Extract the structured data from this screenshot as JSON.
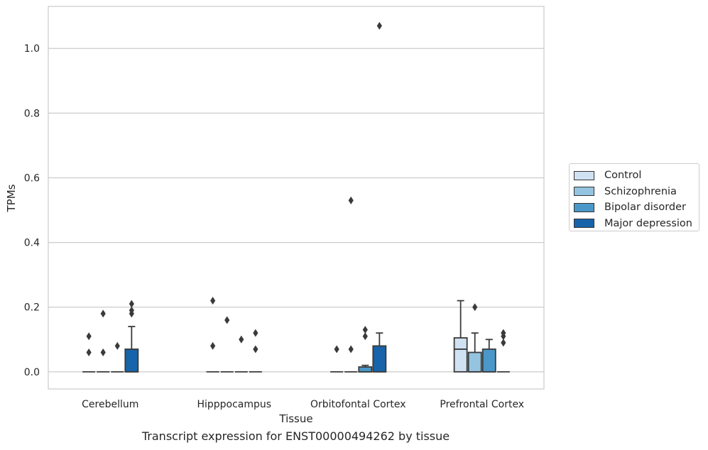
{
  "chart_data": {
    "type": "box",
    "caption": "Transcript expression for ENST00000494262 by tissue",
    "xlabel": "Tissue",
    "ylabel": "TPMs",
    "ylim": [
      -0.053,
      1.13
    ],
    "yticks": [
      0.0,
      0.2,
      0.4,
      0.6,
      0.8,
      1.0
    ],
    "ytick_labels": [
      "0.0",
      "0.2",
      "0.4",
      "0.6",
      "0.8",
      "1.0"
    ],
    "grid": "horizontal",
    "legend_position": "right",
    "categories": [
      "Cerebellum",
      "Hipppocampus",
      "Orbitofontal Cortex",
      "Prefrontal Cortex"
    ],
    "series": [
      {
        "name": "Control",
        "color": "#d0e1f2",
        "boxes": [
          {
            "q1": 0,
            "median": 0,
            "q3": 0,
            "whislo": 0,
            "whishi": 0,
            "fliers": [
              0.06,
              0.11
            ]
          },
          {
            "q1": 0,
            "median": 0,
            "q3": 0,
            "whislo": 0,
            "whishi": 0,
            "fliers": [
              0.08,
              0.22
            ]
          },
          {
            "q1": 0,
            "median": 0,
            "q3": 0,
            "whislo": 0,
            "whishi": 0,
            "fliers": [
              0.07
            ]
          },
          {
            "q1": 0,
            "median": 0.07,
            "q3": 0.105,
            "whislo": 0,
            "whishi": 0.22,
            "fliers": []
          }
        ]
      },
      {
        "name": "Schizophrenia",
        "color": "#94c4df",
        "boxes": [
          {
            "q1": 0,
            "median": 0,
            "q3": 0,
            "whislo": 0,
            "whishi": 0,
            "fliers": [
              0.06,
              0.18
            ]
          },
          {
            "q1": 0,
            "median": 0,
            "q3": 0,
            "whislo": 0,
            "whishi": 0,
            "fliers": [
              0.16
            ]
          },
          {
            "q1": 0,
            "median": 0,
            "q3": 0,
            "whislo": 0,
            "whishi": 0,
            "fliers": [
              0.07,
              0.53
            ]
          },
          {
            "q1": 0,
            "median": 0,
            "q3": 0.06,
            "whislo": 0,
            "whishi": 0.12,
            "fliers": [
              0.2
            ]
          }
        ]
      },
      {
        "name": "Bipolar disorder",
        "color": "#4a98c9",
        "boxes": [
          {
            "q1": 0,
            "median": 0,
            "q3": 0,
            "whislo": 0,
            "whishi": 0,
            "fliers": [
              0.08
            ]
          },
          {
            "q1": 0,
            "median": 0,
            "q3": 0,
            "whislo": 0,
            "whishi": 0,
            "fliers": [
              0.1
            ]
          },
          {
            "q1": 0,
            "median": 0,
            "q3": 0.015,
            "whislo": 0,
            "whishi": 0.02,
            "fliers": [
              0.11,
              0.13
            ]
          },
          {
            "q1": 0,
            "median": 0,
            "q3": 0.07,
            "whislo": 0,
            "whishi": 0.1,
            "fliers": []
          }
        ]
      },
      {
        "name": "Major depression",
        "color": "#1764ab",
        "boxes": [
          {
            "q1": 0,
            "median": 0,
            "q3": 0.07,
            "whislo": 0,
            "whishi": 0.14,
            "fliers": [
              0.18,
              0.19,
              0.21
            ]
          },
          {
            "q1": 0,
            "median": 0,
            "q3": 0,
            "whislo": 0,
            "whishi": 0,
            "fliers": [
              0.07,
              0.12
            ]
          },
          {
            "q1": 0,
            "median": 0,
            "q3": 0.08,
            "whislo": 0,
            "whishi": 0.12,
            "fliers": [
              1.07
            ]
          },
          {
            "q1": 0,
            "median": 0,
            "q3": 0,
            "whislo": 0,
            "whishi": 0,
            "fliers": [
              0.09,
              0.11,
              0.12
            ]
          }
        ]
      }
    ]
  }
}
